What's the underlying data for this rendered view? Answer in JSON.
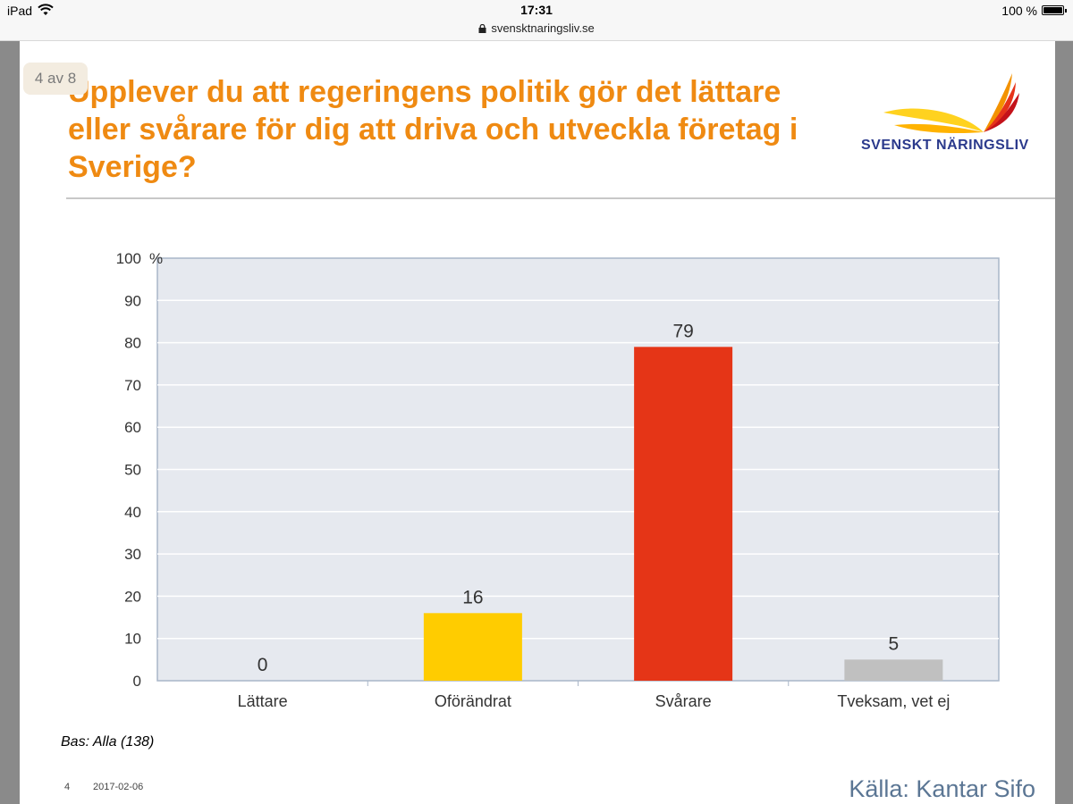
{
  "statusbar": {
    "device": "iPad",
    "time": "17:31",
    "url": "svensktnaringsliv.se",
    "battery": "100 %"
  },
  "slide": {
    "page_indicator": "4 av 8",
    "title": "Upplever du att regeringens politik gör det lättare eller svårare för dig att driva och utveckla företag i Sverige?",
    "logo_text": "SVENSKT NÄRINGSLIV",
    "basis": "Bas: Alla (138)",
    "footer_page": "4",
    "footer_date": "2017-02-06",
    "source": "Källa: Kantar Sifo"
  },
  "colors": {
    "title": "#ef8a12",
    "plot_bg": "#e6e9ef",
    "bar_lattare": "#ffcc00",
    "bar_oforandrat": "#ffcc00",
    "bar_svarare": "#e53517",
    "bar_tveksam": "#c0c0c0"
  },
  "chart_data": {
    "type": "bar",
    "title": "",
    "xlabel": "",
    "ylabel": "",
    "y_unit": "%",
    "ylim": [
      0,
      100
    ],
    "yticks": [
      0,
      10,
      20,
      30,
      40,
      50,
      60,
      70,
      80,
      90,
      100
    ],
    "grid": true,
    "categories": [
      "Lättare",
      "Oförändrat",
      "Svårare",
      "Tveksam, vet ej"
    ],
    "values": [
      0,
      16,
      79,
      5
    ],
    "data_labels": [
      "0",
      "16",
      "79",
      "5"
    ]
  }
}
